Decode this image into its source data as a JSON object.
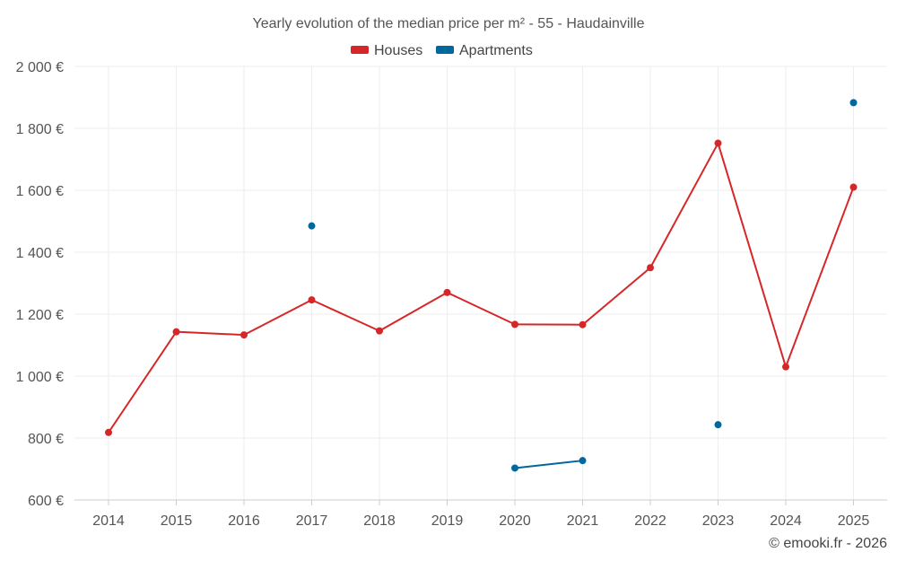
{
  "chart_data": {
    "type": "line",
    "title": "Yearly evolution of the median price per m² - 55 - Haudainville",
    "categories": [
      "2014",
      "2015",
      "2016",
      "2017",
      "2018",
      "2019",
      "2020",
      "2021",
      "2022",
      "2023",
      "2024",
      "2025"
    ],
    "series": [
      {
        "name": "Houses",
        "color": "#d62728",
        "values": [
          818,
          1143,
          1133,
          1246,
          1146,
          1270,
          1167,
          1166,
          1350,
          1752,
          1030,
          1610
        ]
      },
      {
        "name": "Apartments",
        "color": "#00689d",
        "values": [
          null,
          null,
          null,
          1485,
          null,
          null,
          703,
          727,
          null,
          843,
          null,
          1883
        ]
      }
    ],
    "ylim": [
      600,
      2000
    ],
    "yticks": [
      600,
      800,
      1000,
      1200,
      1400,
      1600,
      1800,
      2000
    ],
    "ytick_labels": [
      "600 €",
      "800 €",
      "1 000 €",
      "1 200 €",
      "1 400 €",
      "1 600 €",
      "1 800 €",
      "2 000 €"
    ],
    "grid": true,
    "legend_position": "top-center",
    "xlabel": "",
    "ylabel": ""
  },
  "credit": "© emooki.fr - 2026"
}
